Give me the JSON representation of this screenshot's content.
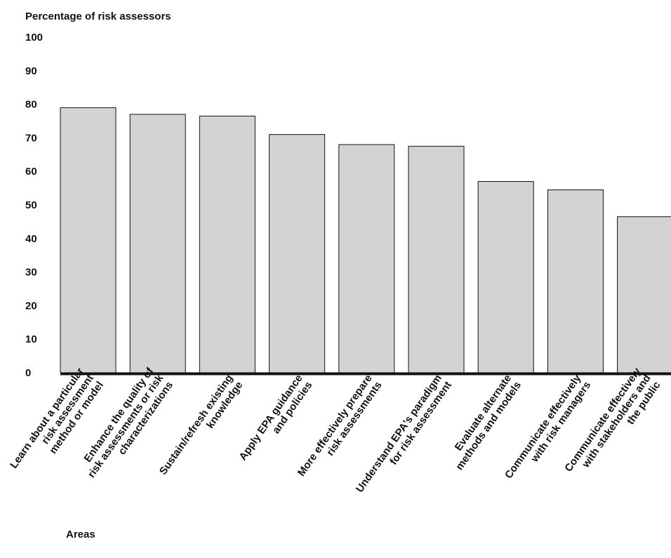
{
  "chart_data": {
    "type": "bar",
    "ylabel": "Percentage of risk assessors",
    "xlabel": "Areas",
    "ylim": [
      0,
      100
    ],
    "yticks": [
      0,
      10,
      20,
      30,
      40,
      50,
      60,
      70,
      80,
      90,
      100
    ],
    "grid": false,
    "categories": [
      [
        "Learn about a particular",
        "risk assessment",
        "method or model"
      ],
      [
        "Enhance the quality of",
        "risk assessments or risk",
        "characterizations"
      ],
      [
        "Sustain/refresh existing",
        "knowledge"
      ],
      [
        "Apply EPA guidance",
        "and policies"
      ],
      [
        "More effectively prepare",
        "risk assessments"
      ],
      [
        "Understand EPA's paradigm",
        "for risk assessment"
      ],
      [
        "Evaluate alternate",
        "methods and models"
      ],
      [
        "Communicate effectively",
        "with risk managers"
      ],
      [
        "Communicate effectively",
        "with stakeholders and",
        "the public"
      ]
    ],
    "values": [
      79,
      77,
      76.5,
      71,
      68,
      67.5,
      57,
      54.5,
      46.5
    ],
    "colors": {
      "bar_fill": "#d3d3d3",
      "bar_stroke": "#111111",
      "axis": "#111111"
    }
  }
}
